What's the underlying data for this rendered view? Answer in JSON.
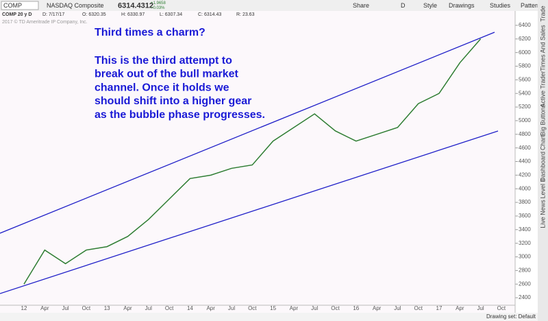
{
  "toolbar": {
    "symbol": "COMP",
    "name": "NASDAQ Composite",
    "price": "6314.4312",
    "change": "+1.9658",
    "change_pct": "+0.03%",
    "buttons": [
      "Share",
      "D",
      "Style",
      "Drawings",
      "Studies",
      "Patterns"
    ]
  },
  "chart_header": {
    "label": "COMP 20 y D",
    "fields": [
      "D: 7/17/17",
      "O: 6320.35",
      "H: 6330.97",
      "L: 6307.34",
      "C: 6314.43",
      "R: 23.63"
    ]
  },
  "copyright": "2017 © TD Ameritrade IP Company, Inc.",
  "annotation": {
    "title": "Third times a charm?",
    "lines": [
      "This is the third attempt to",
      "break out of the bull market",
      "channel. Once it holds we",
      "should shift into a higher gear",
      "as the bubble phase progresses."
    ]
  },
  "sidebar": [
    "Trade",
    "Times And Sales",
    "Active Trader",
    "Big Buttons",
    "Chart",
    "Dashboard",
    "Level II",
    "Live News"
  ],
  "footer": {
    "drawing_set": "Drawing set: Default"
  },
  "chart_data": {
    "type": "line",
    "categories": [
      "12",
      "Apr",
      "Jul",
      "Oct",
      "13",
      "Apr",
      "Jul",
      "Oct",
      "14",
      "Apr",
      "Jul",
      "Oct",
      "15",
      "Apr",
      "Jul",
      "Oct",
      "16",
      "Apr",
      "Jul",
      "Oct",
      "17",
      "Apr",
      "Jul",
      "Oct"
    ],
    "series": [
      {
        "name": "COMP",
        "color": "#2e7d32",
        "values": [
          2600,
          3100,
          2900,
          3100,
          3150,
          3300,
          3550,
          3850,
          4150,
          4200,
          4300,
          4350,
          4700,
          4900,
          5100,
          4850,
          4700,
          4800,
          4900,
          5250,
          5400,
          5850,
          6200,
          null
        ]
      }
    ],
    "ylim": [
      2300,
      6500
    ],
    "yticks": [
      2400,
      2600,
      2800,
      3000,
      3200,
      3400,
      3600,
      3800,
      4000,
      4200,
      4400,
      4600,
      4800,
      5000,
      5200,
      5400,
      5600,
      5800,
      6000,
      6200,
      6400
    ]
  }
}
